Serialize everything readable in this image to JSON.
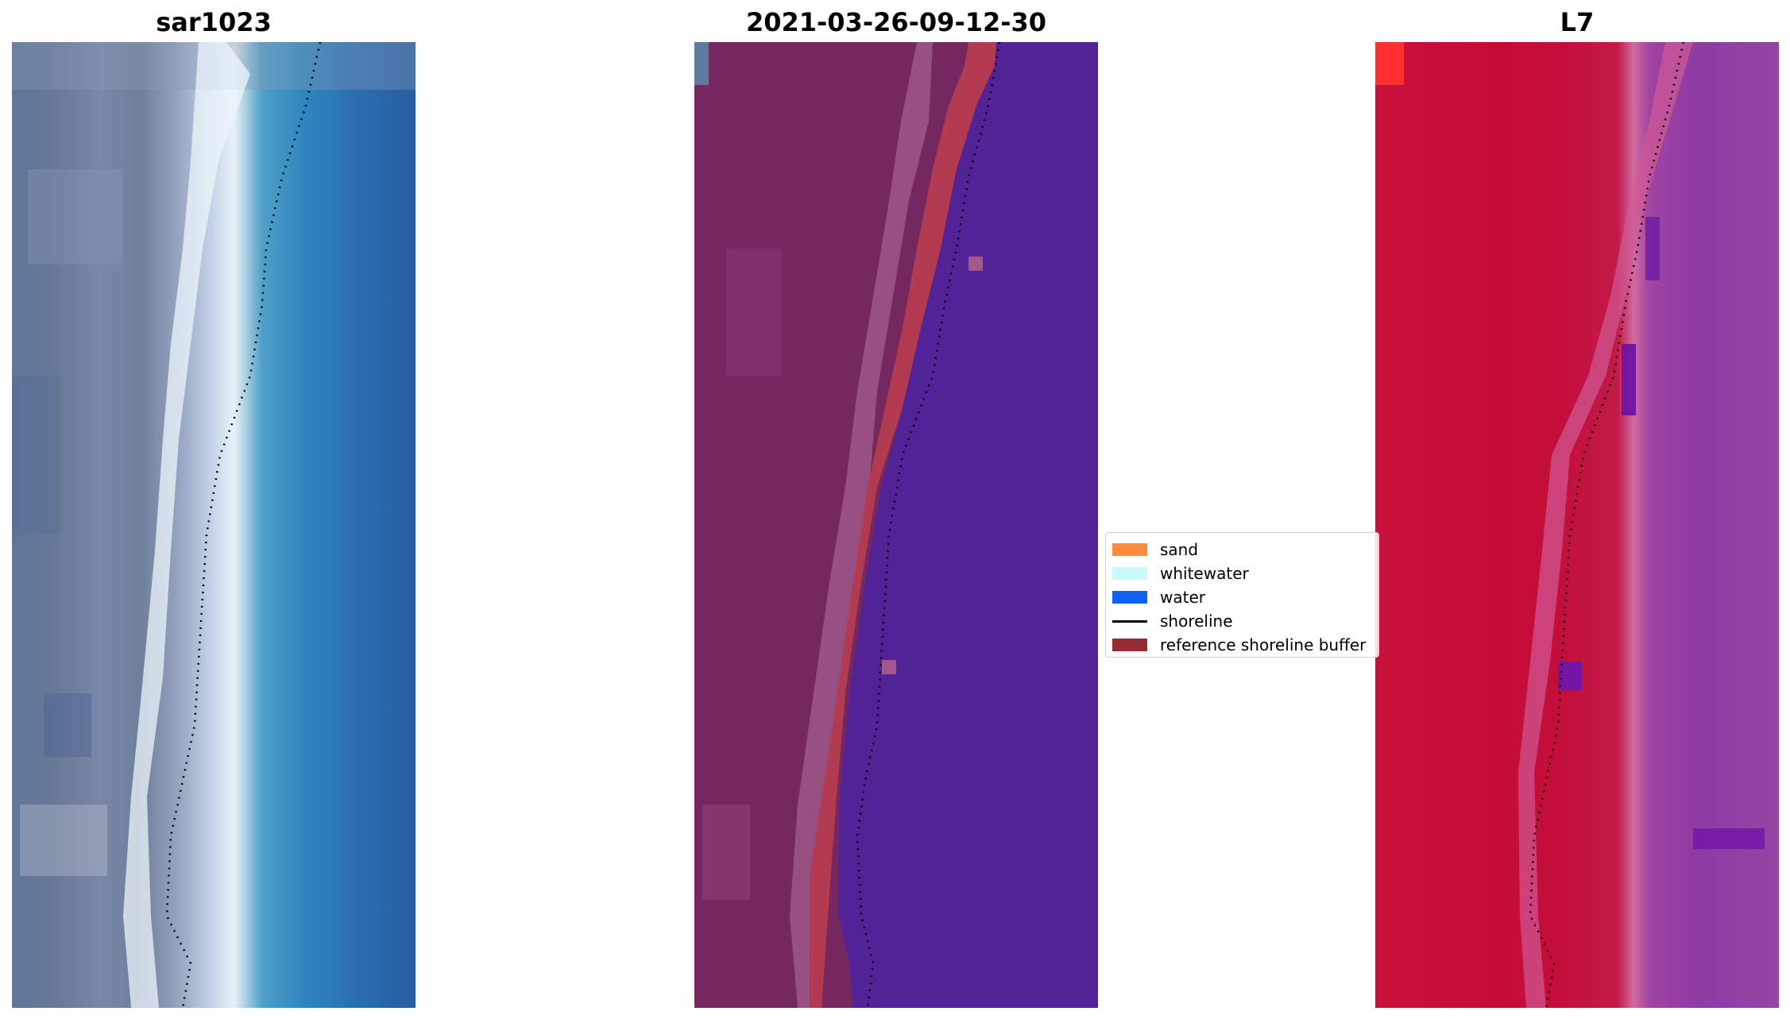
{
  "titles": {
    "left": "sar1023",
    "middle": "2021-03-26-09-12-30",
    "right": "L7"
  },
  "legend": {
    "items": [
      {
        "label": "sand",
        "color": "#ff8c3b",
        "kind": "patch"
      },
      {
        "label": "whitewater",
        "color": "#c8fbfa",
        "kind": "patch"
      },
      {
        "label": "water",
        "color": "#0f62ef",
        "kind": "patch"
      },
      {
        "label": "shoreline",
        "color": "#000000",
        "kind": "line"
      },
      {
        "label": "reference shoreline buffer",
        "color": "#962c33",
        "kind": "patch"
      }
    ]
  },
  "colors": {
    "buffer": "#b23b52",
    "water_class": "#512396",
    "land_class": "#74285f",
    "shoreline_dots": "#000000"
  }
}
